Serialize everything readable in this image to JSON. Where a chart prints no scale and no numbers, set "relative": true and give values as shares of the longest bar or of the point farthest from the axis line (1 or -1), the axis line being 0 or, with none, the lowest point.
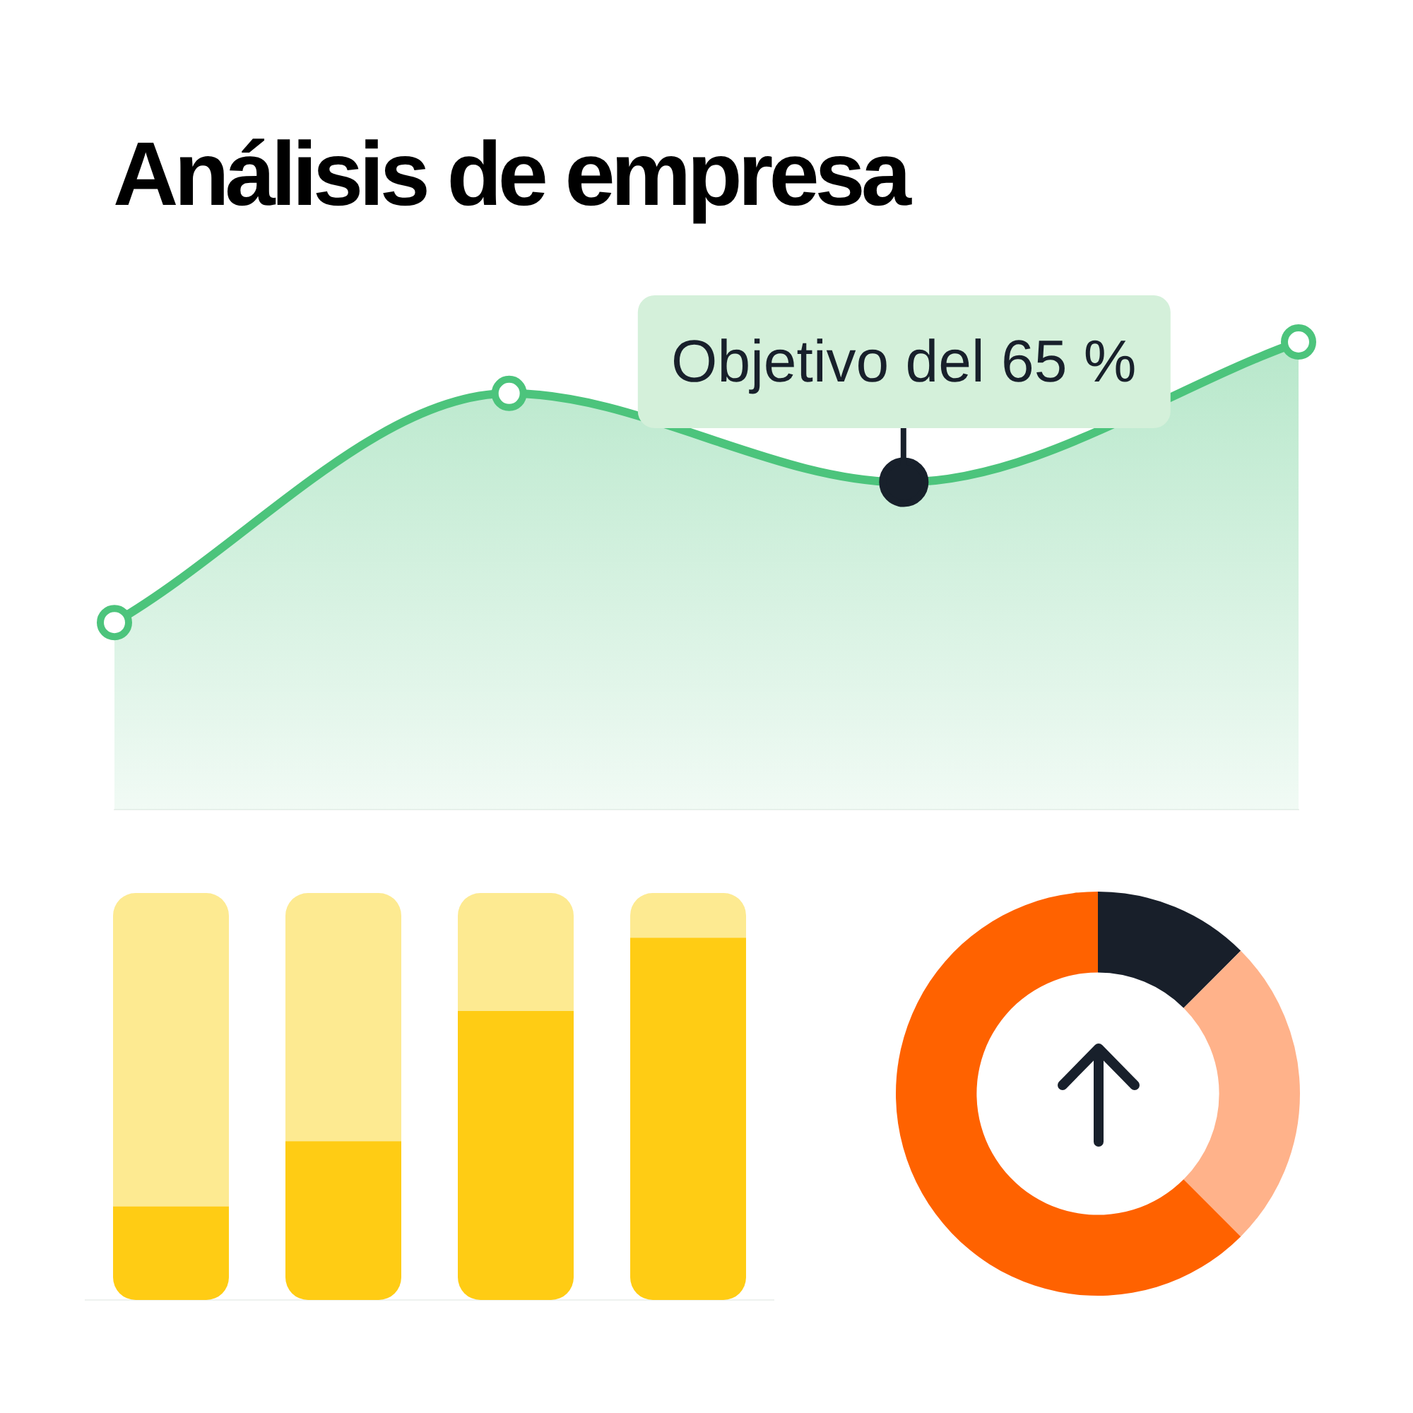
{
  "chart_data": [
    {
      "type": "area",
      "title": "Análisis de empresa",
      "categories": [
        null,
        null,
        null,
        null
      ],
      "relative": true,
      "marker": "circle",
      "series": [
        {
          "color": "#4cc47c",
          "values": [
            0.4,
            0.89,
            0.7,
            1
          ]
        }
      ],
      "annotations": [
        {
          "text": "Objetivo del 65 %",
          "y": 0.7
        }
      ]
    },
    {
      "type": "bar",
      "stacked": true,
      "relative": true,
      "categories": [
        null,
        null,
        null,
        null
      ],
      "series": [
        {
          "color": "#ffcc14",
          "values": [
            0.23,
            0.39,
            0.71,
            0.89
          ]
        },
        {
          "color": "#fdea91",
          "values": [
            0.77,
            0.61,
            0.29,
            0.11
          ]
        }
      ]
    },
    {
      "type": "donut",
      "categories": [
        null,
        null,
        null
      ],
      "values": [
        12.5,
        25,
        62.5
      ],
      "colors": [
        "#181f2a",
        "#ffb28a",
        "#ff6200"
      ]
    }
  ]
}
